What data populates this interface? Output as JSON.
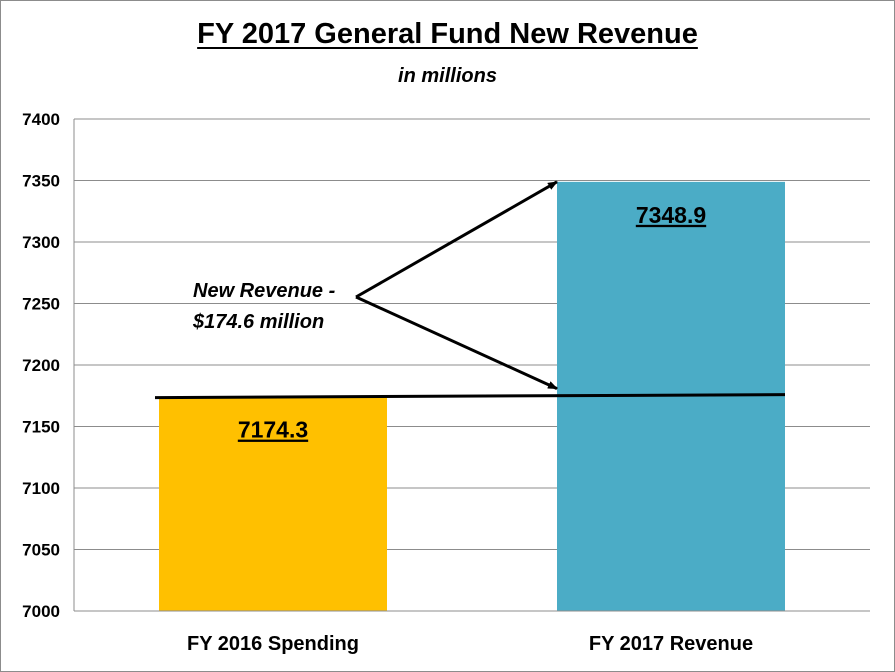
{
  "chart_data": {
    "type": "bar",
    "title": "FY 2017 General Fund New Revenue",
    "subtitle": "in millions",
    "categories": [
      "FY 2016 Spending",
      "FY 2017 Revenue"
    ],
    "values": [
      7174.3,
      7348.9
    ],
    "data_labels": [
      "7174.3",
      "7348.9"
    ],
    "colors": [
      "#ffc000",
      "#4bacc6"
    ],
    "xlabel": "",
    "ylabel": "",
    "ylim": [
      7000,
      7400
    ],
    "yticks": [
      7000,
      7050,
      7100,
      7150,
      7200,
      7250,
      7300,
      7350,
      7400
    ],
    "grid": true,
    "legend": "none",
    "annotation": {
      "line1": "New Revenue -",
      "line2": "$174.6 million"
    }
  }
}
